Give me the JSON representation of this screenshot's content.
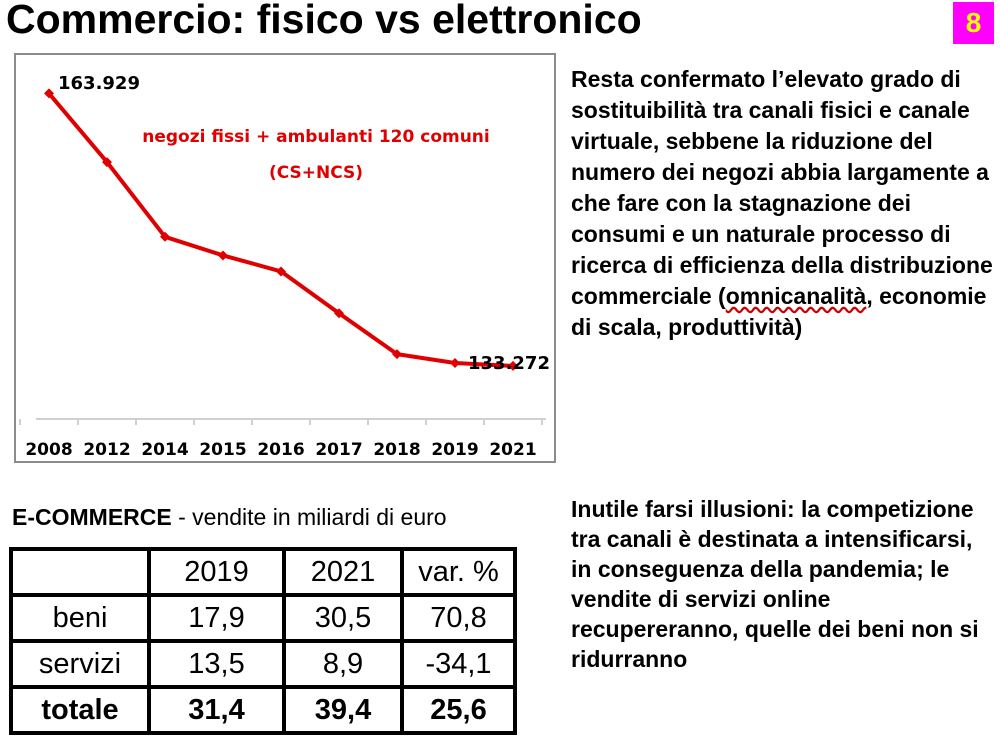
{
  "slide": {
    "title": "Commercio: fisico vs elettronico",
    "page_number": "8"
  },
  "chart_data": {
    "type": "line",
    "categories": [
      "2008",
      "2012",
      "2014",
      "2015",
      "2016",
      "2017",
      "2018",
      "2019",
      "2021"
    ],
    "series": [
      {
        "name": "negozi fissi + ambulanti 120 comuni (CS+NCS)",
        "values": [
          163929,
          156200,
          147800,
          145700,
          143900,
          139200,
          134600,
          133600,
          133272
        ],
        "color": "#e00000"
      }
    ],
    "annotations": {
      "legend_line1": "negozi fissi + ambulanti 120 comuni",
      "legend_line2": "(CS+NCS)",
      "first_label": "163.929",
      "last_label": "133.272"
    },
    "ylim": [
      130000,
      166000
    ],
    "grid": false,
    "y_axis_visible": false
  },
  "paragraph1": {
    "before": "Resta confermato l’elevato grado di sostituibilità tra canali fisici e canale virtuale, sebbene la riduzione del numero dei negozi abbia largamente a che fare con la stagnazione dei consumi e un naturale processo di ricerca di efficienza della distribuzione commerciale (",
    "underlined": "omnicanalità",
    "after": ", economie di scala, produttività)"
  },
  "paragraph2": {
    "text": "Inutile farsi illusioni: la competizione tra canali è destinata a intensificarsi, in conseguenza della pandemia; le vendite di servizi online recupereranno, quelle dei beni non si ridurranno"
  },
  "ecommerce": {
    "caption_bold": "E-COMMERCE",
    "caption_rest": " - vendite in miliardi di euro",
    "table": {
      "header": [
        "",
        "2019",
        "2021",
        "var. %"
      ],
      "rows": [
        [
          "beni",
          "17,9",
          "30,5",
          "70,8"
        ],
        [
          "servizi",
          "13,5",
          "8,9",
          "-34,1"
        ],
        [
          "totale",
          "31,4",
          "39,4",
          "25,6"
        ]
      ]
    }
  }
}
